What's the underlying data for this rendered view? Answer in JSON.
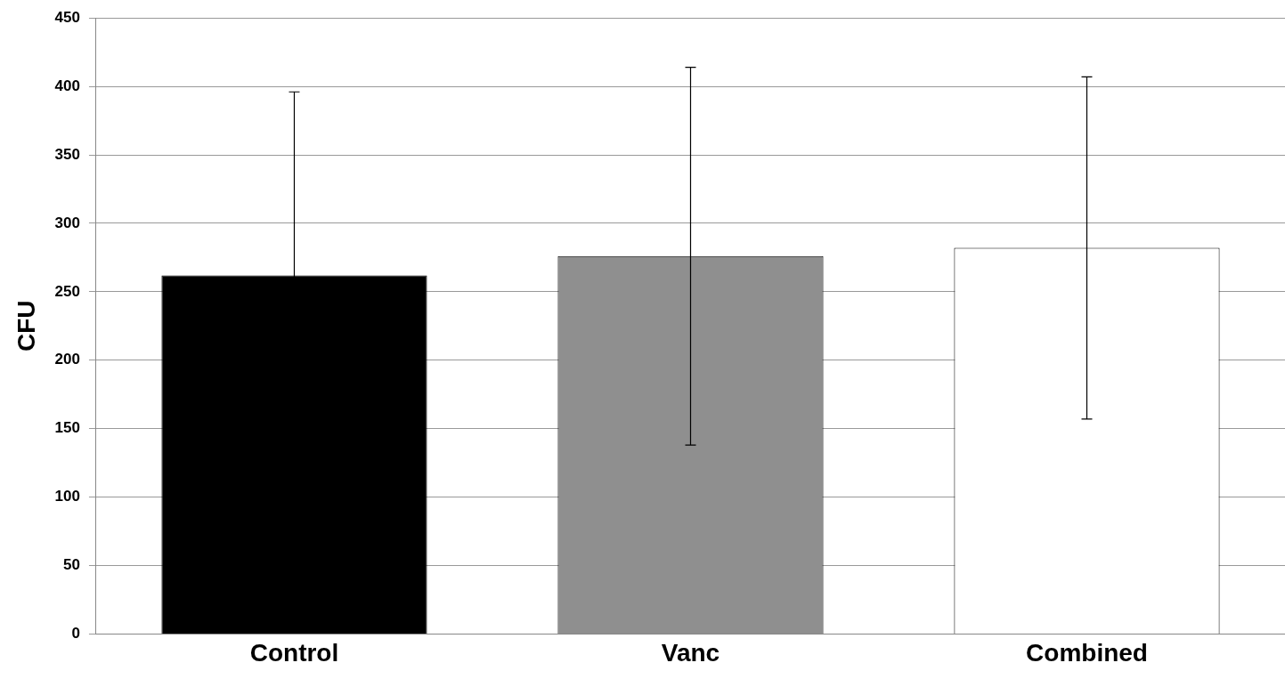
{
  "chart_data": {
    "type": "bar",
    "ylabel": "CFU",
    "categories": [
      "Control",
      "Vanc",
      "Combined"
    ],
    "values": [
      262,
      276,
      282
    ],
    "colors": [
      "#000000",
      "#8f8f8f",
      "#ffffff"
    ],
    "errors": [
      134,
      138,
      125
    ],
    "ylim": [
      0,
      450
    ],
    "yticks": [
      0,
      50,
      100,
      150,
      200,
      250,
      300,
      350,
      400,
      450
    ],
    "grid": "y",
    "legend": false
  }
}
